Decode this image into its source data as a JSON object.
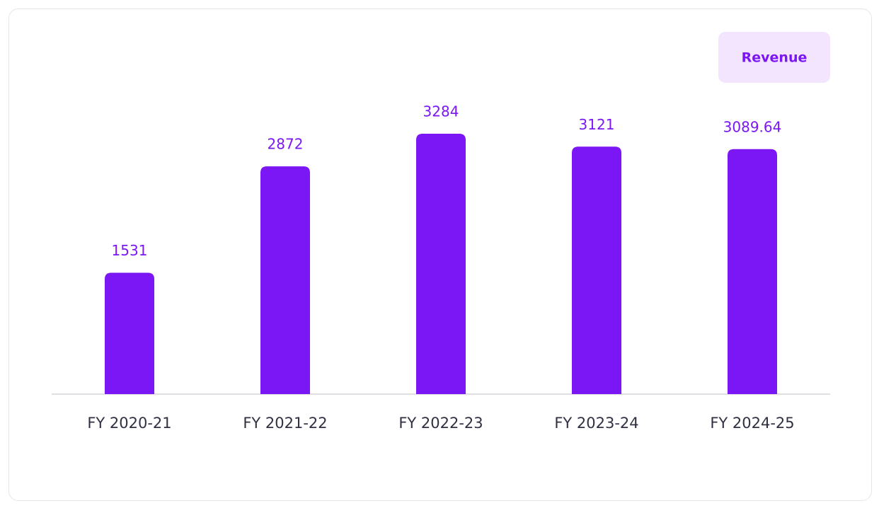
{
  "chart_data": {
    "type": "bar",
    "categories": [
      "FY 2020-21",
      "FY 2021-22",
      "FY 2022-23",
      "FY 2023-24",
      "FY 2024-25"
    ],
    "series": [
      {
        "name": "Revenue",
        "color": "#7b16f4",
        "values": [
          1531,
          2872,
          3284,
          3121,
          3089.64
        ]
      }
    ],
    "legend": "top-right"
  }
}
